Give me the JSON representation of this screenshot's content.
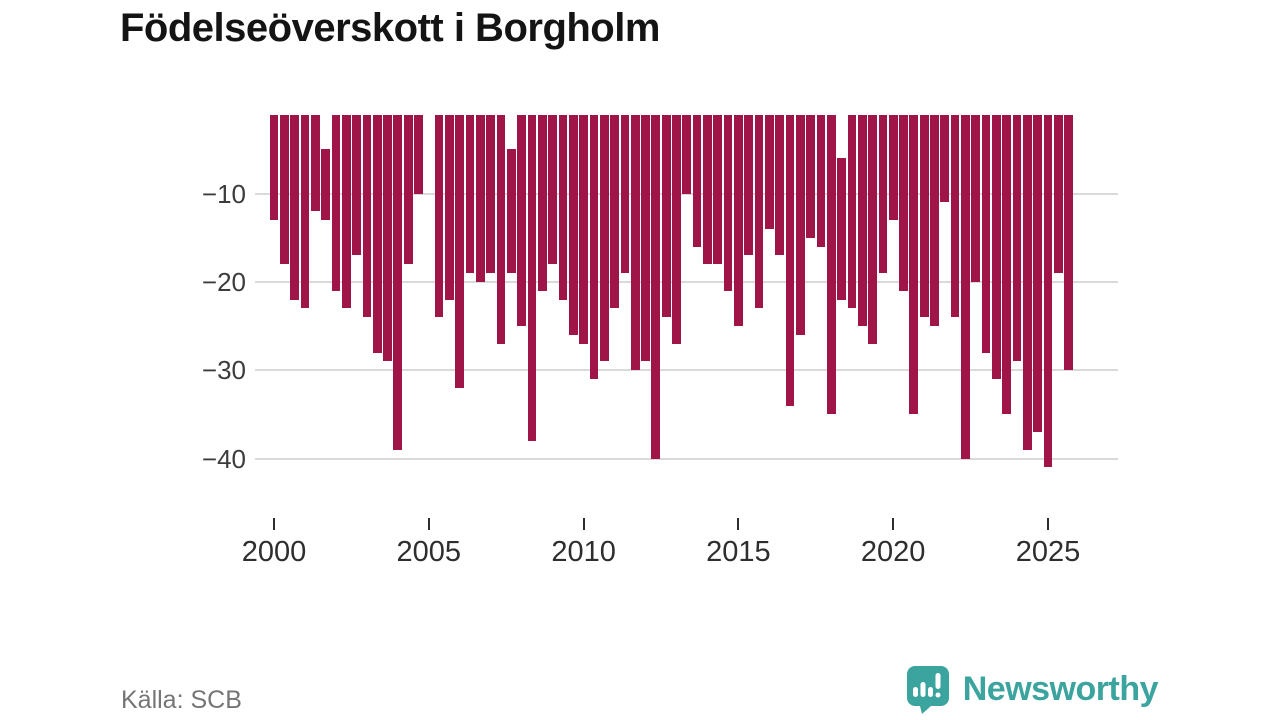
{
  "title": "Födelseöverskott i Borgholm",
  "source": "Källa: SCB",
  "brand": {
    "name": "Newsworthy",
    "color": "#3ca49e",
    "icon": "newsworthy-speech-bubble-chart-icon"
  },
  "colors": {
    "bar": "#a01548",
    "grid": "#d9d9d9",
    "title_text": "#141414",
    "axis_text": "#3c3c3c",
    "source_text": "#757575"
  },
  "chart_data": {
    "type": "bar",
    "title": "Födelseöverskott i Borgholm",
    "xlabel": "",
    "ylabel": "",
    "ylim": [
      -42,
      -1
    ],
    "grid": "horizontal",
    "legend": "none",
    "yticks": [
      -10,
      -20,
      -30,
      -40
    ],
    "ytick_labels": [
      "−10",
      "−20",
      "−30",
      "−40"
    ],
    "xticks": [
      2000,
      2005,
      2010,
      2015,
      2020,
      2025
    ],
    "xtick_labels": [
      "2000",
      "2005",
      "2010",
      "2015",
      "2020",
      "2025"
    ],
    "note": "Negative bars hang from top of plot; values estimated from pixels. Points with top!=0 render as floating bars; v=0 renders as an empty slot.",
    "series": [
      {
        "name": "Födelseöverskott",
        "points": [
          {
            "x": "2000-1",
            "v": -13
          },
          {
            "x": "2000-2",
            "v": -18
          },
          {
            "x": "2000-3",
            "v": -22
          },
          {
            "x": "2001-1",
            "v": -23
          },
          {
            "x": "2001-2",
            "v": -12
          },
          {
            "x": "2001-3",
            "v": -13,
            "top": -5
          },
          {
            "x": "2002-1",
            "v": -21
          },
          {
            "x": "2002-2",
            "v": -23
          },
          {
            "x": "2002-3",
            "v": -17
          },
          {
            "x": "2003-1",
            "v": -24
          },
          {
            "x": "2003-2",
            "v": -28
          },
          {
            "x": "2003-3",
            "v": -29
          },
          {
            "x": "2004-1",
            "v": -39
          },
          {
            "x": "2004-2",
            "v": -18
          },
          {
            "x": "2004-3",
            "v": -10
          },
          {
            "x": "2005-1",
            "v": 0
          },
          {
            "x": "2005-2",
            "v": -24
          },
          {
            "x": "2005-3",
            "v": -22
          },
          {
            "x": "2006-1",
            "v": -32
          },
          {
            "x": "2006-2",
            "v": -19
          },
          {
            "x": "2006-3",
            "v": -20
          },
          {
            "x": "2007-1",
            "v": -19
          },
          {
            "x": "2007-2",
            "v": -27
          },
          {
            "x": "2007-3",
            "v": -19,
            "top": -5
          },
          {
            "x": "2008-1",
            "v": -25
          },
          {
            "x": "2008-2",
            "v": -38
          },
          {
            "x": "2008-3",
            "v": -21
          },
          {
            "x": "2009-1",
            "v": -18
          },
          {
            "x": "2009-2",
            "v": -22
          },
          {
            "x": "2009-3",
            "v": -26
          },
          {
            "x": "2010-1",
            "v": -27
          },
          {
            "x": "2010-2",
            "v": -31
          },
          {
            "x": "2010-3",
            "v": -29
          },
          {
            "x": "2011-1",
            "v": -23
          },
          {
            "x": "2011-2",
            "v": -19
          },
          {
            "x": "2011-3",
            "v": -30
          },
          {
            "x": "2012-1",
            "v": -29
          },
          {
            "x": "2012-2",
            "v": -40
          },
          {
            "x": "2012-3",
            "v": -24
          },
          {
            "x": "2013-1",
            "v": -27
          },
          {
            "x": "2013-2",
            "v": -10
          },
          {
            "x": "2013-3",
            "v": -16
          },
          {
            "x": "2014-1",
            "v": -18
          },
          {
            "x": "2014-2",
            "v": -18
          },
          {
            "x": "2014-3",
            "v": -21
          },
          {
            "x": "2015-1",
            "v": -25
          },
          {
            "x": "2015-2",
            "v": -17
          },
          {
            "x": "2015-3",
            "v": -23
          },
          {
            "x": "2016-1",
            "v": -14
          },
          {
            "x": "2016-2",
            "v": -17
          },
          {
            "x": "2016-3",
            "v": -34
          },
          {
            "x": "2017-1",
            "v": -26
          },
          {
            "x": "2017-2",
            "v": -15
          },
          {
            "x": "2017-3",
            "v": -16
          },
          {
            "x": "2018-1",
            "v": -35
          },
          {
            "x": "2018-2",
            "v": -22,
            "top": -6
          },
          {
            "x": "2018-3",
            "v": -23
          },
          {
            "x": "2019-1",
            "v": -25
          },
          {
            "x": "2019-2",
            "v": -27
          },
          {
            "x": "2019-3",
            "v": -19
          },
          {
            "x": "2020-1",
            "v": -13
          },
          {
            "x": "2020-2",
            "v": -21
          },
          {
            "x": "2020-3",
            "v": -35
          },
          {
            "x": "2021-1",
            "v": -24
          },
          {
            "x": "2021-2",
            "v": -25
          },
          {
            "x": "2021-3",
            "v": -11
          },
          {
            "x": "2022-1",
            "v": -24
          },
          {
            "x": "2022-2",
            "v": -40
          },
          {
            "x": "2022-3",
            "v": -20
          },
          {
            "x": "2023-1",
            "v": -28
          },
          {
            "x": "2023-2",
            "v": -31
          },
          {
            "x": "2023-3",
            "v": -35
          },
          {
            "x": "2024-1",
            "v": -29
          },
          {
            "x": "2024-2",
            "v": -39
          },
          {
            "x": "2024-3",
            "v": -37
          },
          {
            "x": "2025-1",
            "v": -41
          },
          {
            "x": "2025-2",
            "v": -19
          },
          {
            "x": "2025-3",
            "v": -30
          }
        ]
      }
    ]
  }
}
